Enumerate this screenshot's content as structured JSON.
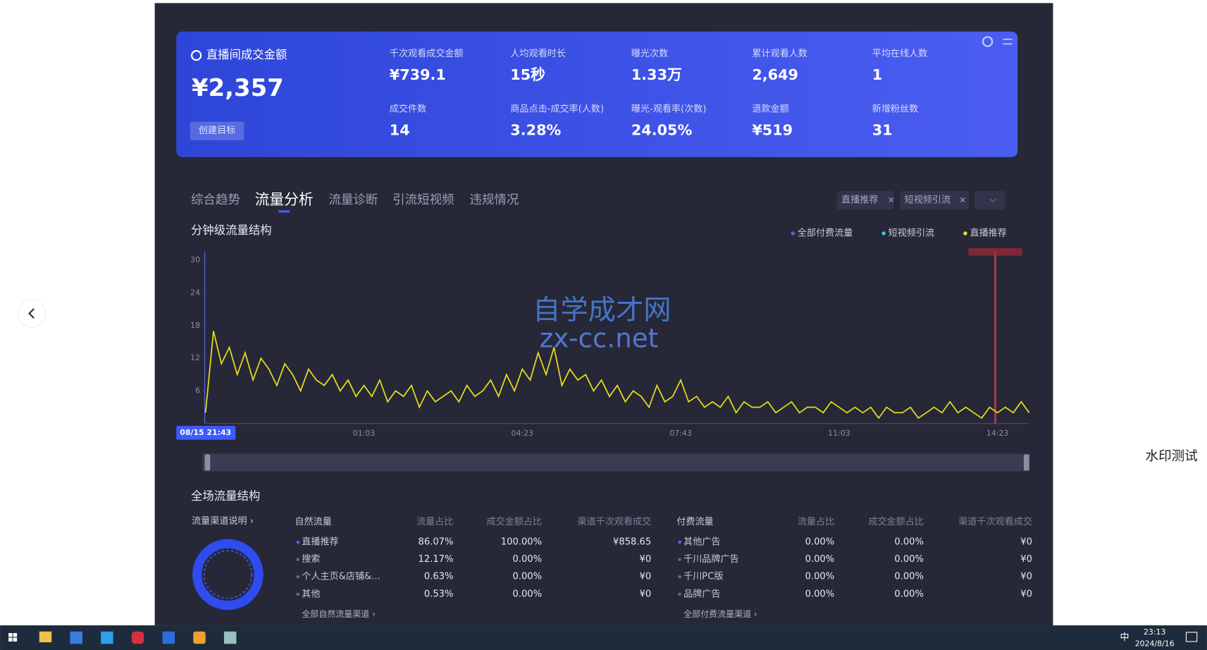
{
  "card": {
    "title": "直播间成交金额",
    "value": "¥2,357",
    "button": "创建目标",
    "metrics": [
      {
        "label": "千次观看成交金额",
        "value": "¥739.1"
      },
      {
        "label": "人均观看时长",
        "value": "15秒"
      },
      {
        "label": "曝光次数",
        "value": "1.33万"
      },
      {
        "label": "累计观看人数",
        "value": "2,649"
      },
      {
        "label": "平均在线人数",
        "value": "1"
      },
      {
        "label": "成交件数",
        "value": "14"
      },
      {
        "label": "商品点击-成交率(人数)",
        "value": "3.28%"
      },
      {
        "label": "曝光-观看率(次数)",
        "value": "24.05%"
      },
      {
        "label": "退款金额",
        "value": "¥519"
      },
      {
        "label": "新增粉丝数",
        "value": "31"
      }
    ]
  },
  "tabs": {
    "items": [
      "综合趋势",
      "流量分析",
      "流量诊断",
      "引流短视频",
      "违规情况"
    ],
    "active": 1
  },
  "filters": [
    "直播推荐",
    "短视频引流"
  ],
  "traffic_chart": {
    "type": "line",
    "title": "分钟级流量结构",
    "legend": [
      {
        "name": "全部付费流量",
        "color": "#5b5ef0"
      },
      {
        "name": "短视频引流",
        "color": "#3fc6e0"
      },
      {
        "name": "直播推荐",
        "color": "#e8e030"
      }
    ],
    "categories": [
      "08/15 21:43",
      null,
      null,
      null,
      null,
      null,
      null,
      null,
      null,
      null,
      null,
      null,
      null,
      null,
      null,
      null,
      null,
      null,
      null,
      null,
      "01:03",
      null,
      null,
      null,
      null,
      null,
      null,
      null,
      null,
      null,
      null,
      null,
      null,
      null,
      null,
      null,
      null,
      null,
      null,
      null,
      "04:23",
      null,
      null,
      null,
      null,
      null,
      null,
      null,
      null,
      null,
      null,
      null,
      null,
      null,
      null,
      null,
      null,
      null,
      null,
      null,
      "07:43",
      null,
      null,
      null,
      null,
      null,
      null,
      null,
      null,
      null,
      null,
      null,
      null,
      null,
      null,
      null,
      null,
      null,
      null,
      null,
      "11:03",
      null,
      null,
      null,
      null,
      null,
      null,
      null,
      null,
      null,
      null,
      null,
      null,
      null,
      null,
      null,
      null,
      null,
      null,
      null,
      "14:23",
      null,
      null,
      null,
      null
    ],
    "series": [
      {
        "name": "直播推荐",
        "color": "#e6dc1e",
        "values": [
          2,
          17,
          11,
          14,
          9,
          13,
          8,
          12,
          10,
          7,
          11,
          9,
          6,
          10,
          8,
          7,
          9,
          6,
          8,
          5,
          7,
          5,
          8,
          4,
          6,
          5,
          7,
          3,
          6,
          4,
          5,
          6,
          4,
          7,
          5,
          6,
          8,
          5,
          9,
          6,
          10,
          8,
          13,
          9,
          14,
          7,
          10,
          8,
          9,
          6,
          8,
          5,
          7,
          4,
          6,
          5,
          3,
          7,
          4,
          5,
          8,
          4,
          5,
          3,
          4,
          3,
          5,
          2,
          4,
          3,
          3,
          4,
          2,
          3,
          4,
          2,
          3,
          3,
          2,
          4,
          3,
          2,
          3,
          2,
          3,
          1,
          3,
          2,
          2,
          3,
          1,
          2,
          3,
          2,
          4,
          2,
          3,
          2,
          1,
          3,
          2,
          3,
          2,
          4,
          2
        ]
      }
    ],
    "ylim": [
      0,
      30
    ],
    "yticks": [
      6,
      12,
      18,
      24,
      30
    ]
  },
  "overview": {
    "title": "全场流量结构",
    "channel_note": "流量渠道说明 ›"
  },
  "natural_table": {
    "headers": [
      "自然流量",
      "流量占比",
      "成交金额占比",
      "渠道千次观看成交"
    ],
    "rows": [
      [
        "直播推荐",
        "86.07%",
        "100.00%",
        "¥858.65"
      ],
      [
        "搜索",
        "12.17%",
        "0.00%",
        "¥0"
      ],
      [
        "个人主页&店铺&...",
        "0.63%",
        "0.00%",
        "¥0"
      ],
      [
        "其他",
        "0.53%",
        "0.00%",
        "¥0"
      ]
    ],
    "link": "全部自然流量渠道 ›"
  },
  "paid_table": {
    "headers": [
      "付费流量",
      "流量占比",
      "成交金额占比",
      "渠道千次观看成交"
    ],
    "rows": [
      [
        "其他广告",
        "0.00%",
        "0.00%",
        "¥0"
      ],
      [
        "千川品牌广告",
        "0.00%",
        "0.00%",
        "¥0"
      ],
      [
        "千川PC版",
        "0.00%",
        "0.00%",
        "¥0"
      ],
      [
        "品牌广告",
        "0.00%",
        "0.00%",
        "¥0"
      ]
    ],
    "link": "全部付费流量渠道 ›"
  },
  "watermarks": {
    "site_name": "自学成才网",
    "site_url": "zx-cc.net",
    "test": "水印测试"
  },
  "taskbar": {
    "ime": "中",
    "time": "23:13",
    "date": "2024/8/16"
  }
}
